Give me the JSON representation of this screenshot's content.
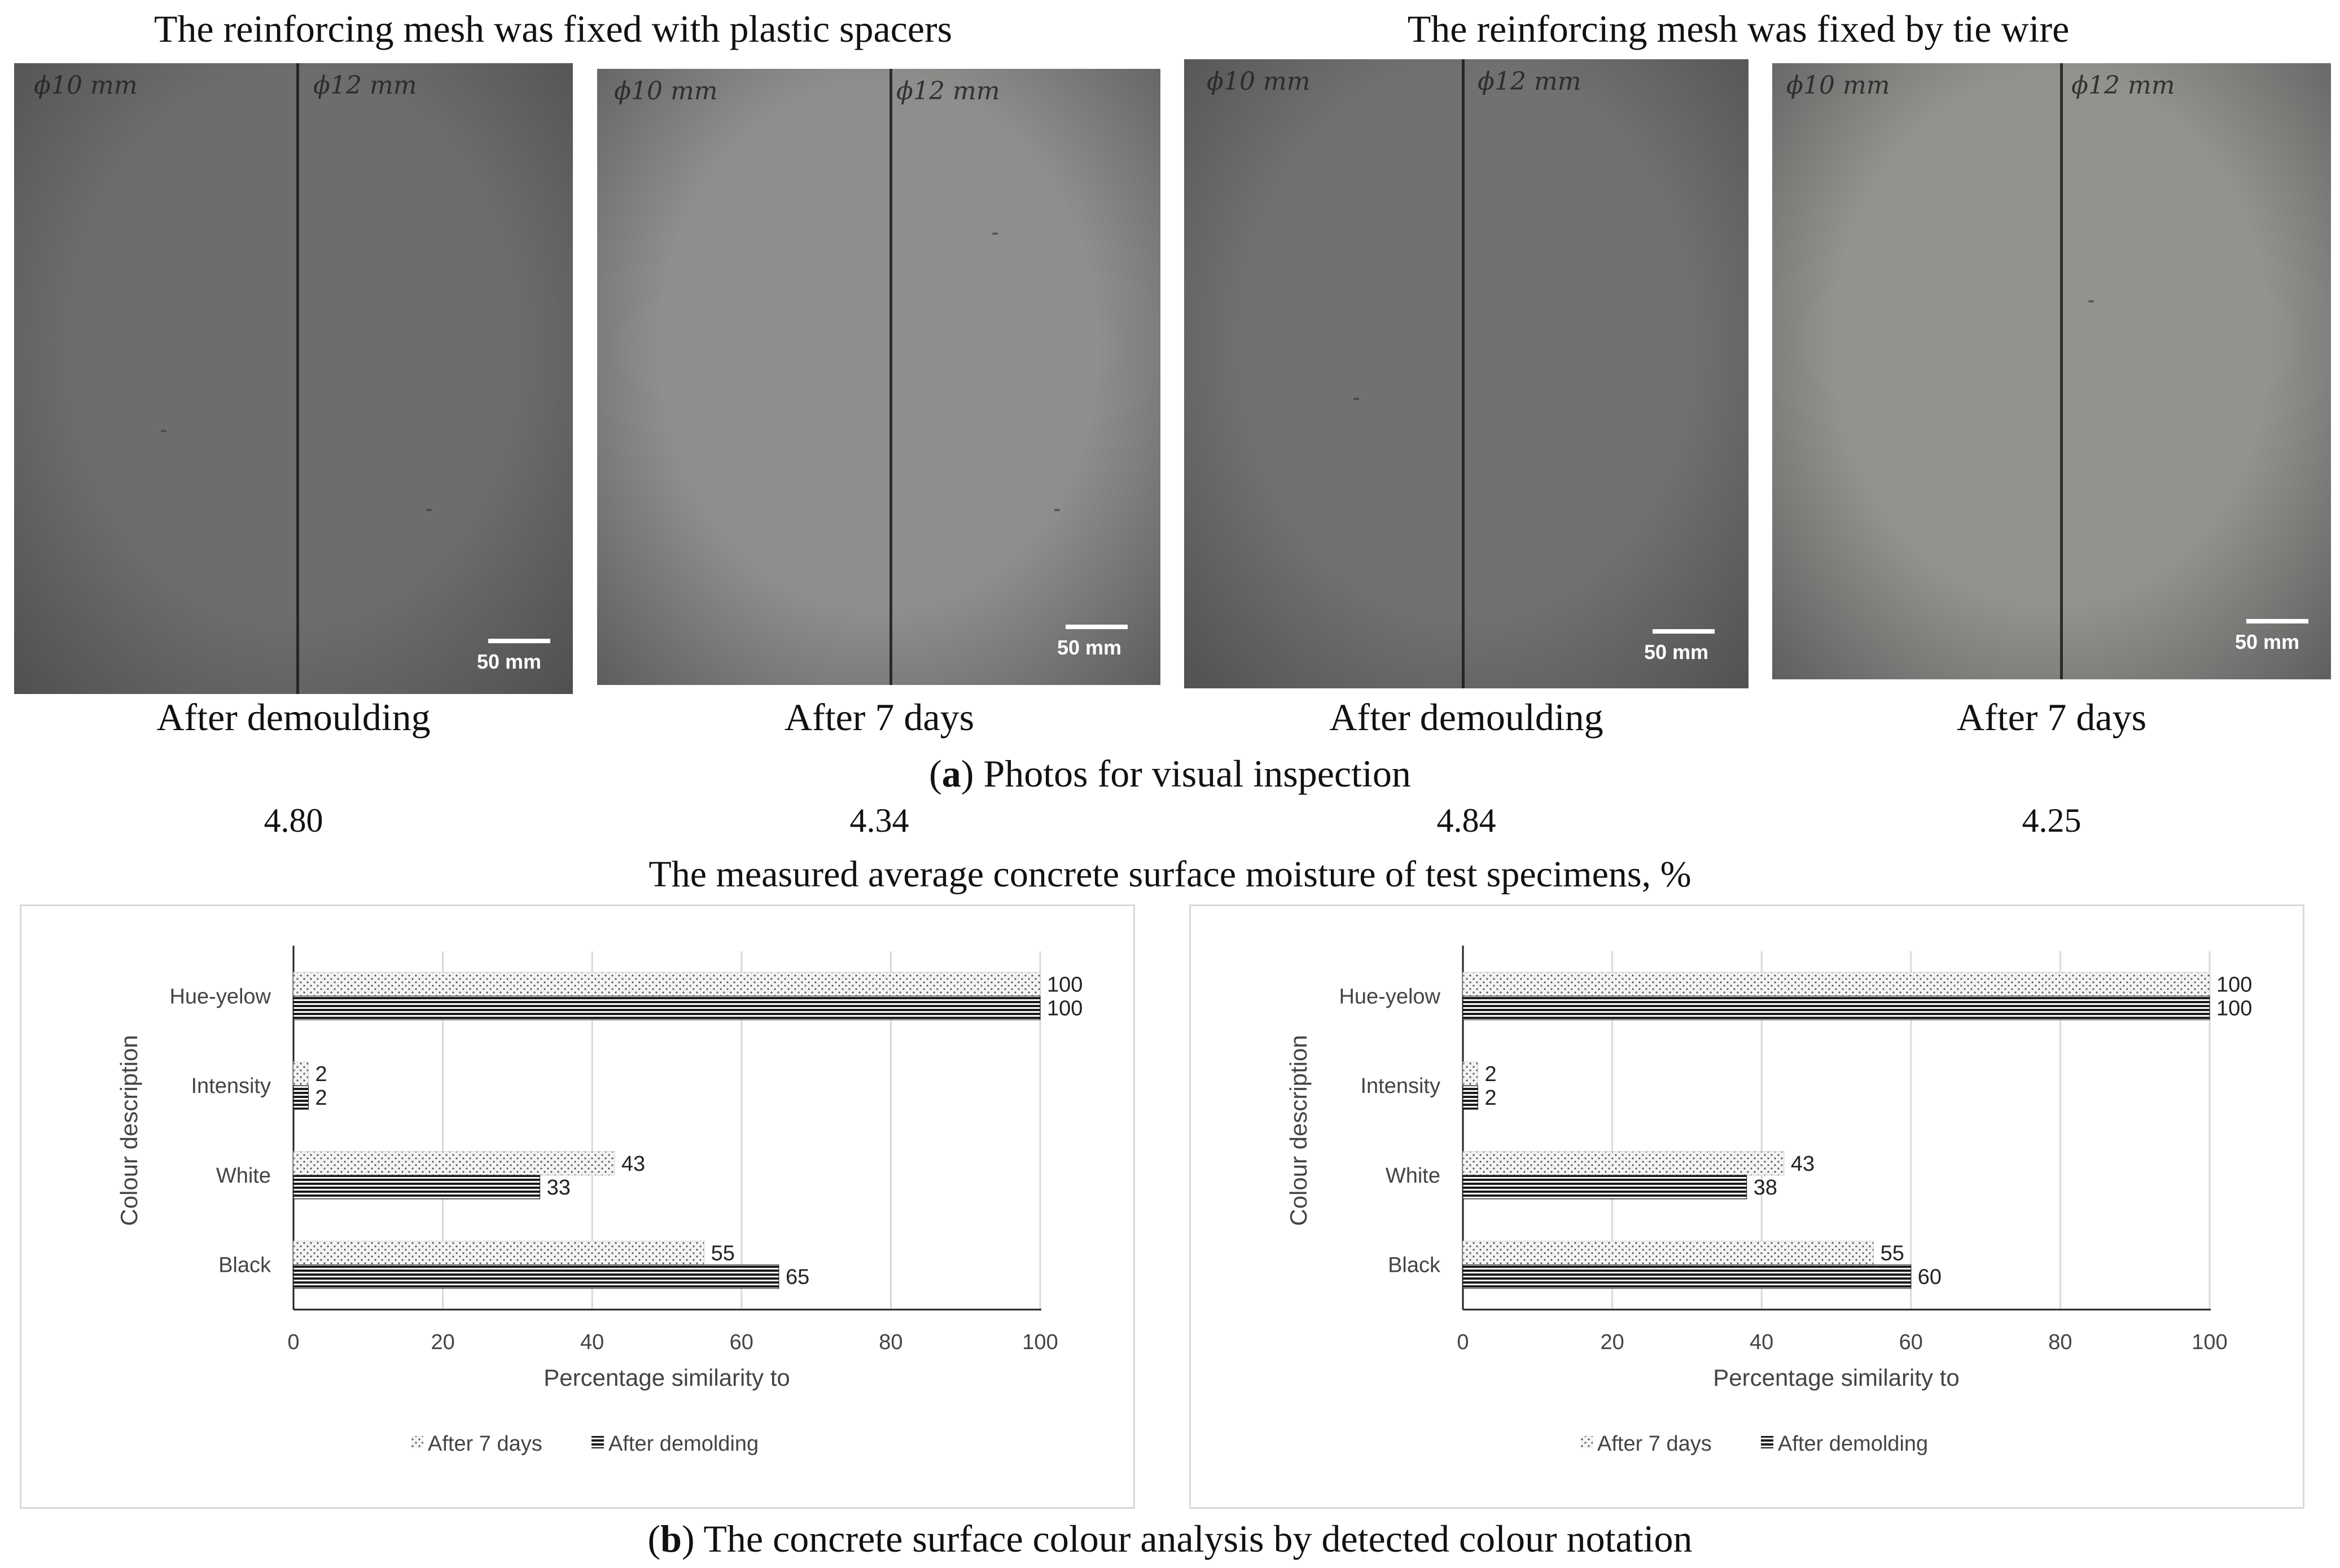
{
  "headings": {
    "plastic": "The reinforcing mesh was fixed with plastic spacers",
    "wire": "The reinforcing mesh was fixed by tie wire"
  },
  "photos": [
    {
      "label_left": "ϕ10 mm",
      "label_right": "ϕ12 mm",
      "scale": "50 mm",
      "caption": "After demoulding",
      "tone": "#6d6d6d"
    },
    {
      "label_left": "ϕ10 mm",
      "label_right": "ϕ12 mm",
      "scale": "50 mm",
      "caption": "After 7 days",
      "tone": "#8e8e8c"
    },
    {
      "label_left": "ϕ10 mm",
      "label_right": "ϕ12 mm",
      "scale": "50 mm",
      "caption": "After demoulding",
      "tone": "#727170"
    },
    {
      "label_left": "ϕ10 mm",
      "label_right": "ϕ12 mm",
      "scale": "50 mm",
      "caption": "After 7 days",
      "tone": "#93928f"
    }
  ],
  "subcaption_a": {
    "letter": "a",
    "open": "(",
    "close": ")",
    "text": " Photos for visual inspection"
  },
  "moisture": {
    "values": [
      "4.80",
      "4.34",
      "4.84",
      "4.25"
    ],
    "label": "The measured average concrete surface moisture of test specimens, %"
  },
  "subcaption_b": {
    "letter": "b",
    "open": "(",
    "close": ")",
    "text": " The concrete surface colour analysis by detected colour notation"
  },
  "chart_data": [
    {
      "type": "bar",
      "orientation": "horizontal",
      "categories": [
        "Hue-yelow",
        "Intensity",
        "White",
        "Black"
      ],
      "series": [
        {
          "name": "After 7 days",
          "values": [
            100,
            2,
            43,
            55
          ],
          "pattern": "dots"
        },
        {
          "name": "After demolding",
          "values": [
            100,
            2,
            33,
            65
          ],
          "pattern": "horizontal-lines"
        }
      ],
      "xlabel": "Percentage similarity to",
      "ylabel": "Colour description",
      "xlim": [
        0,
        100
      ],
      "xticks": [
        0,
        20,
        40,
        60,
        80,
        100
      ],
      "grid": true,
      "legend": "bottom"
    },
    {
      "type": "bar",
      "orientation": "horizontal",
      "categories": [
        "Hue-yelow",
        "Intensity",
        "White",
        "Black"
      ],
      "series": [
        {
          "name": "After 7 days",
          "values": [
            100,
            2,
            43,
            55
          ],
          "pattern": "dots"
        },
        {
          "name": "After demolding",
          "values": [
            100,
            2,
            38,
            60
          ],
          "pattern": "horizontal-lines"
        }
      ],
      "xlabel": "Percentage similarity to",
      "ylabel": "Colour description",
      "xlim": [
        0,
        100
      ],
      "xticks": [
        0,
        20,
        40,
        60,
        80,
        100
      ],
      "grid": true,
      "legend": "bottom"
    }
  ],
  "colors": {
    "grid": "#d9d9d9",
    "axis": "#222222",
    "text": "#444444",
    "bar_dark": "#1a1a1a",
    "dot": "#555555"
  }
}
